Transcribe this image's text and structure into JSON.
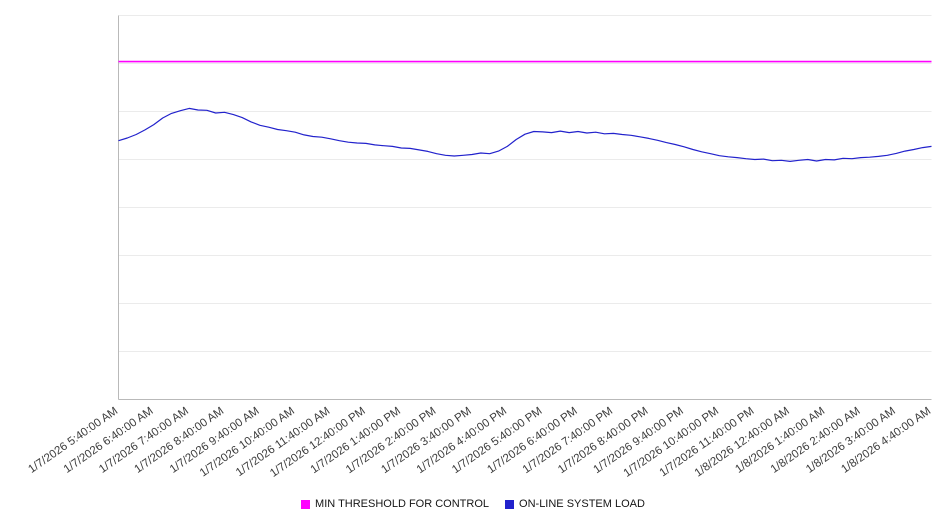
{
  "chart_data": {
    "type": "line",
    "title": "",
    "xlabel": "",
    "ylabel": "",
    "ylim": [
      0,
      100
    ],
    "y_grid_step": 12.5,
    "y_axis_labels_visible": false,
    "grid": true,
    "legend_position": "bottom",
    "x_labels": [
      "1/7/2026 5:40:00 AM",
      "1/7/2026 6:40:00 AM",
      "1/7/2026 7:40:00 AM",
      "1/7/2026 8:40:00 AM",
      "1/7/2026 9:40:00 AM",
      "1/7/2026 10:40:00 AM",
      "1/7/2026 11:40:00 AM",
      "1/7/2026 12:40:00 PM",
      "1/7/2026 1:40:00 PM",
      "1/7/2026 2:40:00 PM",
      "1/7/2026 3:40:00 PM",
      "1/7/2026 4:40:00 PM",
      "1/7/2026 5:40:00 PM",
      "1/7/2026 6:40:00 PM",
      "1/7/2026 7:40:00 PM",
      "1/7/2026 8:40:00 PM",
      "1/7/2026 9:40:00 PM",
      "1/7/2026 10:40:00 PM",
      "1/7/2026 11:40:00 PM",
      "1/8/2026 12:40:00 AM",
      "1/8/2026 1:40:00 AM",
      "1/8/2026 2:40:00 AM",
      "1/8/2026 3:40:00 AM",
      "1/8/2026 4:40:00 AM"
    ],
    "series": [
      {
        "name": "MIN THRESHOLD FOR CONTROL",
        "kind": "constant-line",
        "color": "#ff00ff",
        "value": 88
      },
      {
        "name": "ON-LINE SYSTEM LOAD",
        "kind": "line",
        "color": "#2222cc",
        "points_per_hour": 4,
        "values": [
          67.4,
          68.1,
          69.0,
          70.2,
          71.6,
          73.3,
          74.5,
          75.2,
          75.8,
          75.4,
          75.3,
          74.6,
          74.8,
          74.2,
          73.4,
          72.3,
          71.4,
          70.9,
          70.3,
          70.0,
          69.6,
          68.9,
          68.5,
          68.3,
          67.9,
          67.4,
          67.0,
          66.8,
          66.7,
          66.3,
          66.1,
          65.9,
          65.5,
          65.4,
          65.0,
          64.6,
          64.0,
          63.6,
          63.4,
          63.6,
          63.8,
          64.2,
          64.0,
          64.7,
          65.9,
          67.7,
          69.1,
          69.8,
          69.7,
          69.5,
          69.9,
          69.5,
          69.8,
          69.4,
          69.6,
          69.2,
          69.3,
          69.0,
          68.8,
          68.4,
          68.0,
          67.5,
          66.9,
          66.4,
          65.8,
          65.1,
          64.5,
          64.0,
          63.5,
          63.2,
          63.0,
          62.7,
          62.5,
          62.6,
          62.2,
          62.3,
          62.0,
          62.3,
          62.5,
          62.1,
          62.5,
          62.4,
          62.8,
          62.7,
          63.0,
          63.1,
          63.3,
          63.6,
          64.1,
          64.7,
          65.1,
          65.6,
          65.9
        ]
      }
    ]
  }
}
